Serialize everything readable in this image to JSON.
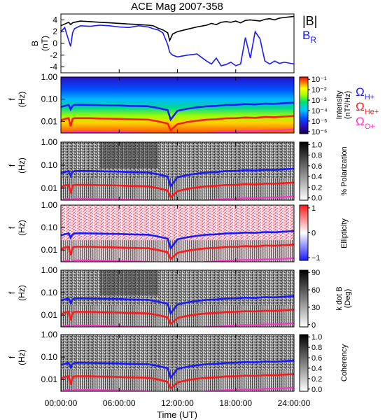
{
  "title": "ACE Mag 2007-358",
  "colors": {
    "B_total": "#000000",
    "B_R": "#1a1aff",
    "H_plus": "#1a1aff",
    "He_plus": "#ff1a1a",
    "O_plus": "#ff33cc",
    "intensity_scale": [
      "#1a0050",
      "#2a10c8",
      "#0050ff",
      "#00c8ff",
      "#00e070",
      "#a0ff00",
      "#ffff00",
      "#ff8000",
      "#ff0000"
    ],
    "ellipticity_scale": [
      "#1a1aff",
      "#ffffff",
      "#ff1a1a"
    ]
  },
  "legend": {
    "b_total": "|B|",
    "b_r_main": "B",
    "b_r_sub": "R",
    "h_main": "Ω",
    "h_sub": "H+",
    "he_main": "Ω",
    "he_sub": "He+",
    "o_main": "Ω",
    "o_sub": "O+"
  },
  "chart_data": [
    {
      "type": "line",
      "panel": "B",
      "ylabel": "B",
      "yunit": "(nT)",
      "ylim": [
        -5,
        5
      ],
      "yticks": [
        4,
        2,
        0,
        -2,
        -4
      ],
      "x_hours": [
        0,
        0.4,
        0.8,
        1.0,
        1.2,
        1.4,
        2,
        3,
        4,
        5,
        6,
        7,
        8,
        9,
        9.5,
        10,
        10.5,
        11,
        11.2,
        11.5,
        12,
        13,
        14,
        15,
        15.5,
        16,
        16.5,
        17,
        17.5,
        18,
        18.5,
        19,
        19.5,
        20,
        20.5,
        21,
        21.5,
        22,
        22.5,
        23,
        24
      ],
      "series": [
        {
          "name": "|B|",
          "values": [
            3.0,
            3.3,
            3.6,
            3.2,
            3.5,
            3.6,
            3.8,
            3.7,
            3.6,
            3.5,
            3.4,
            3.3,
            3.2,
            3.1,
            3.0,
            2.6,
            2.3,
            1.8,
            0.5,
            1.6,
            2.0,
            2.4,
            2.8,
            3.1,
            3.4,
            3.2,
            3.6,
            3.7,
            3.6,
            3.8,
            3.5,
            3.9,
            4.0,
            3.9,
            3.8,
            4.1,
            4.2,
            4.0,
            4.3,
            4.4,
            4.6
          ]
        },
        {
          "name": "B_R",
          "values": [
            2.0,
            2.7,
            0.5,
            -0.5,
            1.8,
            2.5,
            3.0,
            2.9,
            3.1,
            3.0,
            2.8,
            2.7,
            3.0,
            2.8,
            2.5,
            2.3,
            1.8,
            -0.2,
            -1.5,
            -2.0,
            -2.3,
            -2.0,
            -1.8,
            -3.0,
            -3.5,
            -2.5,
            -3.8,
            -3.6,
            -3.2,
            -3.8,
            -3.5,
            1.0,
            -2.5,
            2.0,
            0.8,
            -3.0,
            -3.5,
            -3.0,
            -3.4,
            -3.2,
            -3.5
          ]
        }
      ]
    },
    {
      "type": "heatmap",
      "panel": "Intensity",
      "ylabel": "f",
      "yunit": "(Hz)",
      "ylim": [
        0.003,
        1.0
      ],
      "yticks": [
        "1.00",
        "0.10",
        "0.01"
      ],
      "colorbar_label": "Intensity",
      "colorbar_unit": "(nT²/Hz)",
      "colorbar_ticks": [
        "10⁻¹",
        "10⁻²",
        "10⁻³",
        "10⁻⁴",
        "10⁻⁵",
        "10⁻⁶"
      ]
    },
    {
      "type": "heatmap",
      "panel": "Polarization",
      "ylabel": "f",
      "yunit": "(Hz)",
      "ylim": [
        0.003,
        1.0
      ],
      "yticks": [
        "1.00",
        "0.10",
        "0.01"
      ],
      "colorbar_label": "% Polarization",
      "colorbar_ticks": [
        "1.0",
        "0.8",
        "0.6",
        "0.4",
        "0.2",
        "0.0"
      ]
    },
    {
      "type": "heatmap",
      "panel": "Ellipticity",
      "ylabel": "f",
      "yunit": "(Hz)",
      "ylim": [
        0.003,
        1.0
      ],
      "yticks": [
        "1.00",
        "0.10",
        "0.01"
      ],
      "colorbar_label": "Ellipticity",
      "colorbar_ticks": [
        "1",
        "0",
        "−1"
      ]
    },
    {
      "type": "heatmap",
      "panel": "k dot B",
      "ylabel": "f",
      "yunit": "(Hz)",
      "ylim": [
        0.003,
        1.0
      ],
      "yticks": [
        "1.00",
        "0.10",
        "0.01"
      ],
      "colorbar_label": "k dot B",
      "colorbar_unit": "(Deg)",
      "colorbar_ticks": [
        "90",
        "60",
        "30",
        "0"
      ]
    },
    {
      "type": "heatmap",
      "panel": "Coherency",
      "ylabel": "f",
      "yunit": "(Hz)",
      "ylim": [
        0.003,
        1.0
      ],
      "yticks": [
        "1.00",
        "0.10",
        "0.01"
      ],
      "colorbar_label": "Coherency",
      "colorbar_ticks": [
        "1.0",
        "0.8",
        "0.6",
        "0.4",
        "0.2",
        "0.0"
      ]
    },
    {
      "type": "line",
      "panel": "gyrofrequency overlays (all spectrogram panels)",
      "x_hours": [
        0,
        0.4,
        0.8,
        1.0,
        1.2,
        1.4,
        2,
        3,
        4,
        5,
        6,
        7,
        8,
        9,
        10,
        11,
        11.3,
        12,
        13,
        14,
        15,
        16,
        17,
        18,
        19,
        20,
        21,
        22,
        23,
        24
      ],
      "series": [
        {
          "name": "Ω H+",
          "values": [
            0.045,
            0.05,
            0.055,
            0.035,
            0.05,
            0.055,
            0.056,
            0.055,
            0.054,
            0.053,
            0.052,
            0.05,
            0.049,
            0.048,
            0.04,
            0.032,
            0.012,
            0.03,
            0.037,
            0.043,
            0.048,
            0.05,
            0.055,
            0.056,
            0.06,
            0.058,
            0.063,
            0.062,
            0.066,
            0.07
          ]
        },
        {
          "name": "Ω He+",
          "values": [
            0.011,
            0.013,
            0.014,
            0.006,
            0.013,
            0.014,
            0.014,
            0.014,
            0.0135,
            0.0133,
            0.013,
            0.0125,
            0.0123,
            0.012,
            0.01,
            0.008,
            0.004,
            0.0075,
            0.0093,
            0.0108,
            0.012,
            0.0125,
            0.0138,
            0.014,
            0.015,
            0.0145,
            0.0158,
            0.0155,
            0.0165,
            0.0175
          ]
        },
        {
          "name": "Ω O+",
          "values": [
            0.0028,
            0.0033,
            0.0035,
            0.0022,
            0.0033,
            0.0035,
            0.0035,
            0.0035,
            0.0034,
            0.0033,
            0.0033,
            0.0031,
            0.0031,
            0.003,
            0.0025,
            0.002,
            0.0012,
            0.0019,
            0.0023,
            0.0027,
            0.003,
            0.0031,
            0.0034,
            0.0035,
            0.0037,
            0.0036,
            0.0039,
            0.0039,
            0.0041,
            0.0044
          ]
        }
      ]
    }
  ],
  "xaxis": {
    "label": "Time (UT)",
    "xlim": [
      0,
      24
    ],
    "tick_hours": [
      0,
      6,
      12,
      18,
      24
    ],
    "tick_labels": [
      "00:00:00",
      "06:00:00",
      "12:00:00",
      "18:00:00",
      "24:00:00"
    ]
  }
}
